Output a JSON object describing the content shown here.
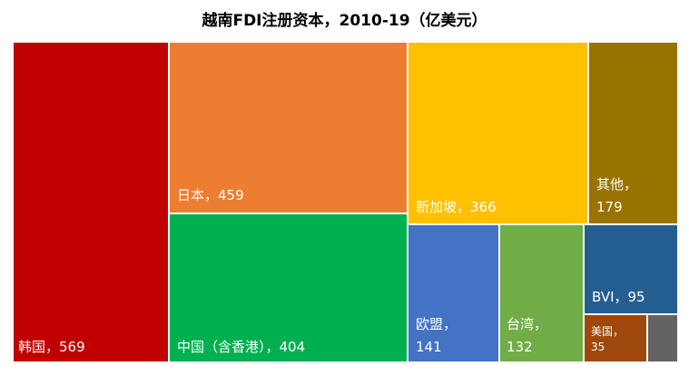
{
  "chart_data": {
    "type": "treemap",
    "title": "越南FDI注册资本，2010-19（亿美元）",
    "items": [
      {
        "name": "韩国",
        "value": 569,
        "color": "#C00000",
        "label_text": "韩国，569"
      },
      {
        "name": "日本",
        "value": 459,
        "color": "#ED7D31",
        "label_text": "日本，459"
      },
      {
        "name": "中国（含香港）",
        "value": 404,
        "color": "#00B050",
        "label_text": "中国（含香港），404"
      },
      {
        "name": "新加坡",
        "value": 366,
        "color": "#FFC000",
        "label_text": "新加坡，366"
      },
      {
        "name": "其他",
        "value": 179,
        "color": "#997300",
        "label_text": "其他，",
        "label_value": "179"
      },
      {
        "name": "欧盟",
        "value": 141,
        "color": "#4472C4",
        "label_text": "欧盟，",
        "label_value": "141"
      },
      {
        "name": "台湾",
        "value": 132,
        "color": "#70AD47",
        "label_text": "台湾，",
        "label_value": "132"
      },
      {
        "name": "BVI",
        "value": 95,
        "color": "#255E91",
        "label_text": "BVI，95"
      },
      {
        "name": "美国",
        "value": 35,
        "color": "#9E480E",
        "label_text": "美国，",
        "label_value": "35"
      },
      {
        "name": "",
        "value": 12,
        "color": "#636363",
        "label_text": ""
      }
    ]
  }
}
